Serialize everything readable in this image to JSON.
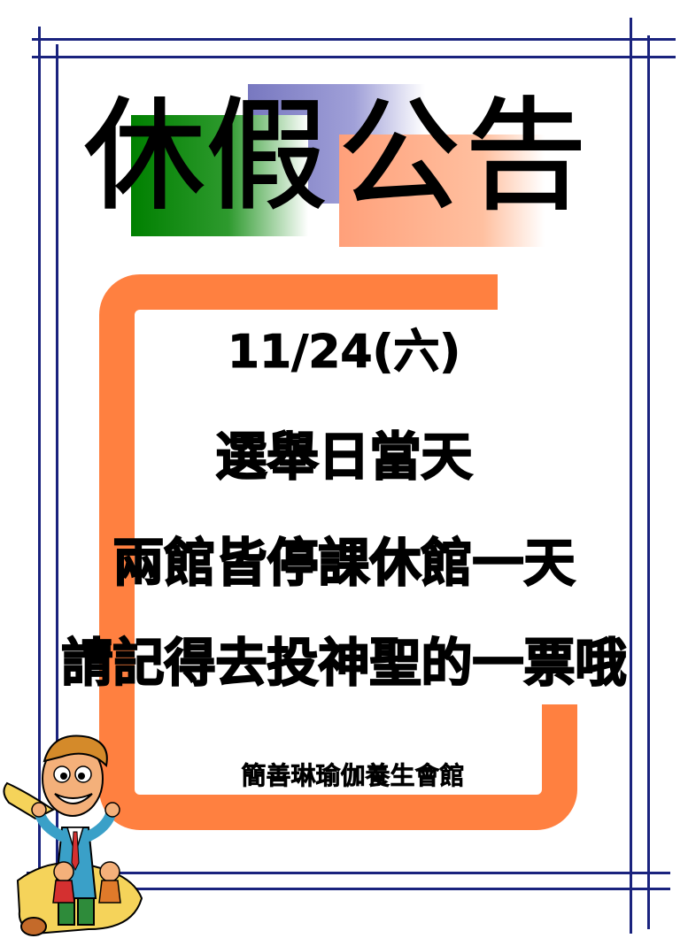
{
  "colors": {
    "frame": "#1a237e",
    "accent_orange": "#ff8040",
    "block_green": "#008000",
    "block_purple": "#7878c0",
    "block_peach": "#ffa07a"
  },
  "notice": {
    "title_chars": [
      "休",
      "假",
      "公",
      "告"
    ],
    "date": "11/24(六)",
    "line1": "選舉日當天",
    "line2": "兩館皆停課休館一天",
    "line3": "請記得去投神聖的一票哦",
    "venue": "簡善琳瑜伽養生會館"
  },
  "decoration": {
    "mascot_icon": "cartoon-man-with-scroll-icon"
  }
}
